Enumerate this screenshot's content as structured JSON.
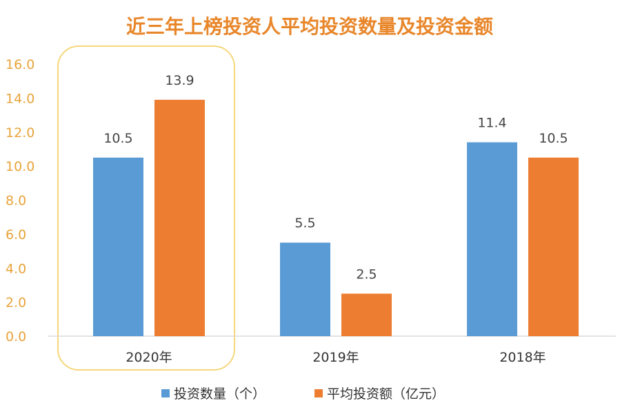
{
  "chart_data": {
    "type": "bar",
    "title": "近三年上榜投资人平均投资数量及投资金额",
    "categories": [
      "2020年",
      "2019年",
      "2018年"
    ],
    "series": [
      {
        "name": "投资数量（个）",
        "values": [
          10.5,
          5.5,
          11.4
        ],
        "color": "#5B9BD5"
      },
      {
        "name": "平均投资额（亿元）",
        "values": [
          13.9,
          2.5,
          10.5
        ],
        "color": "#ED7D31"
      }
    ],
    "ylim": [
      0,
      16
    ],
    "yticks": [
      "0.0",
      "2.0",
      "4.0",
      "6.0",
      "8.0",
      "10.0",
      "12.0",
      "14.0",
      "16.0"
    ],
    "xlabel": "",
    "ylabel": "",
    "grid": false,
    "legend_position": "bottom",
    "highlight_category": "2020年",
    "colors": {
      "title": "#E8862A",
      "ytick": "#E8A33A",
      "highlight_frame": "#F5D77A",
      "axis": "#D9D9D9"
    }
  }
}
